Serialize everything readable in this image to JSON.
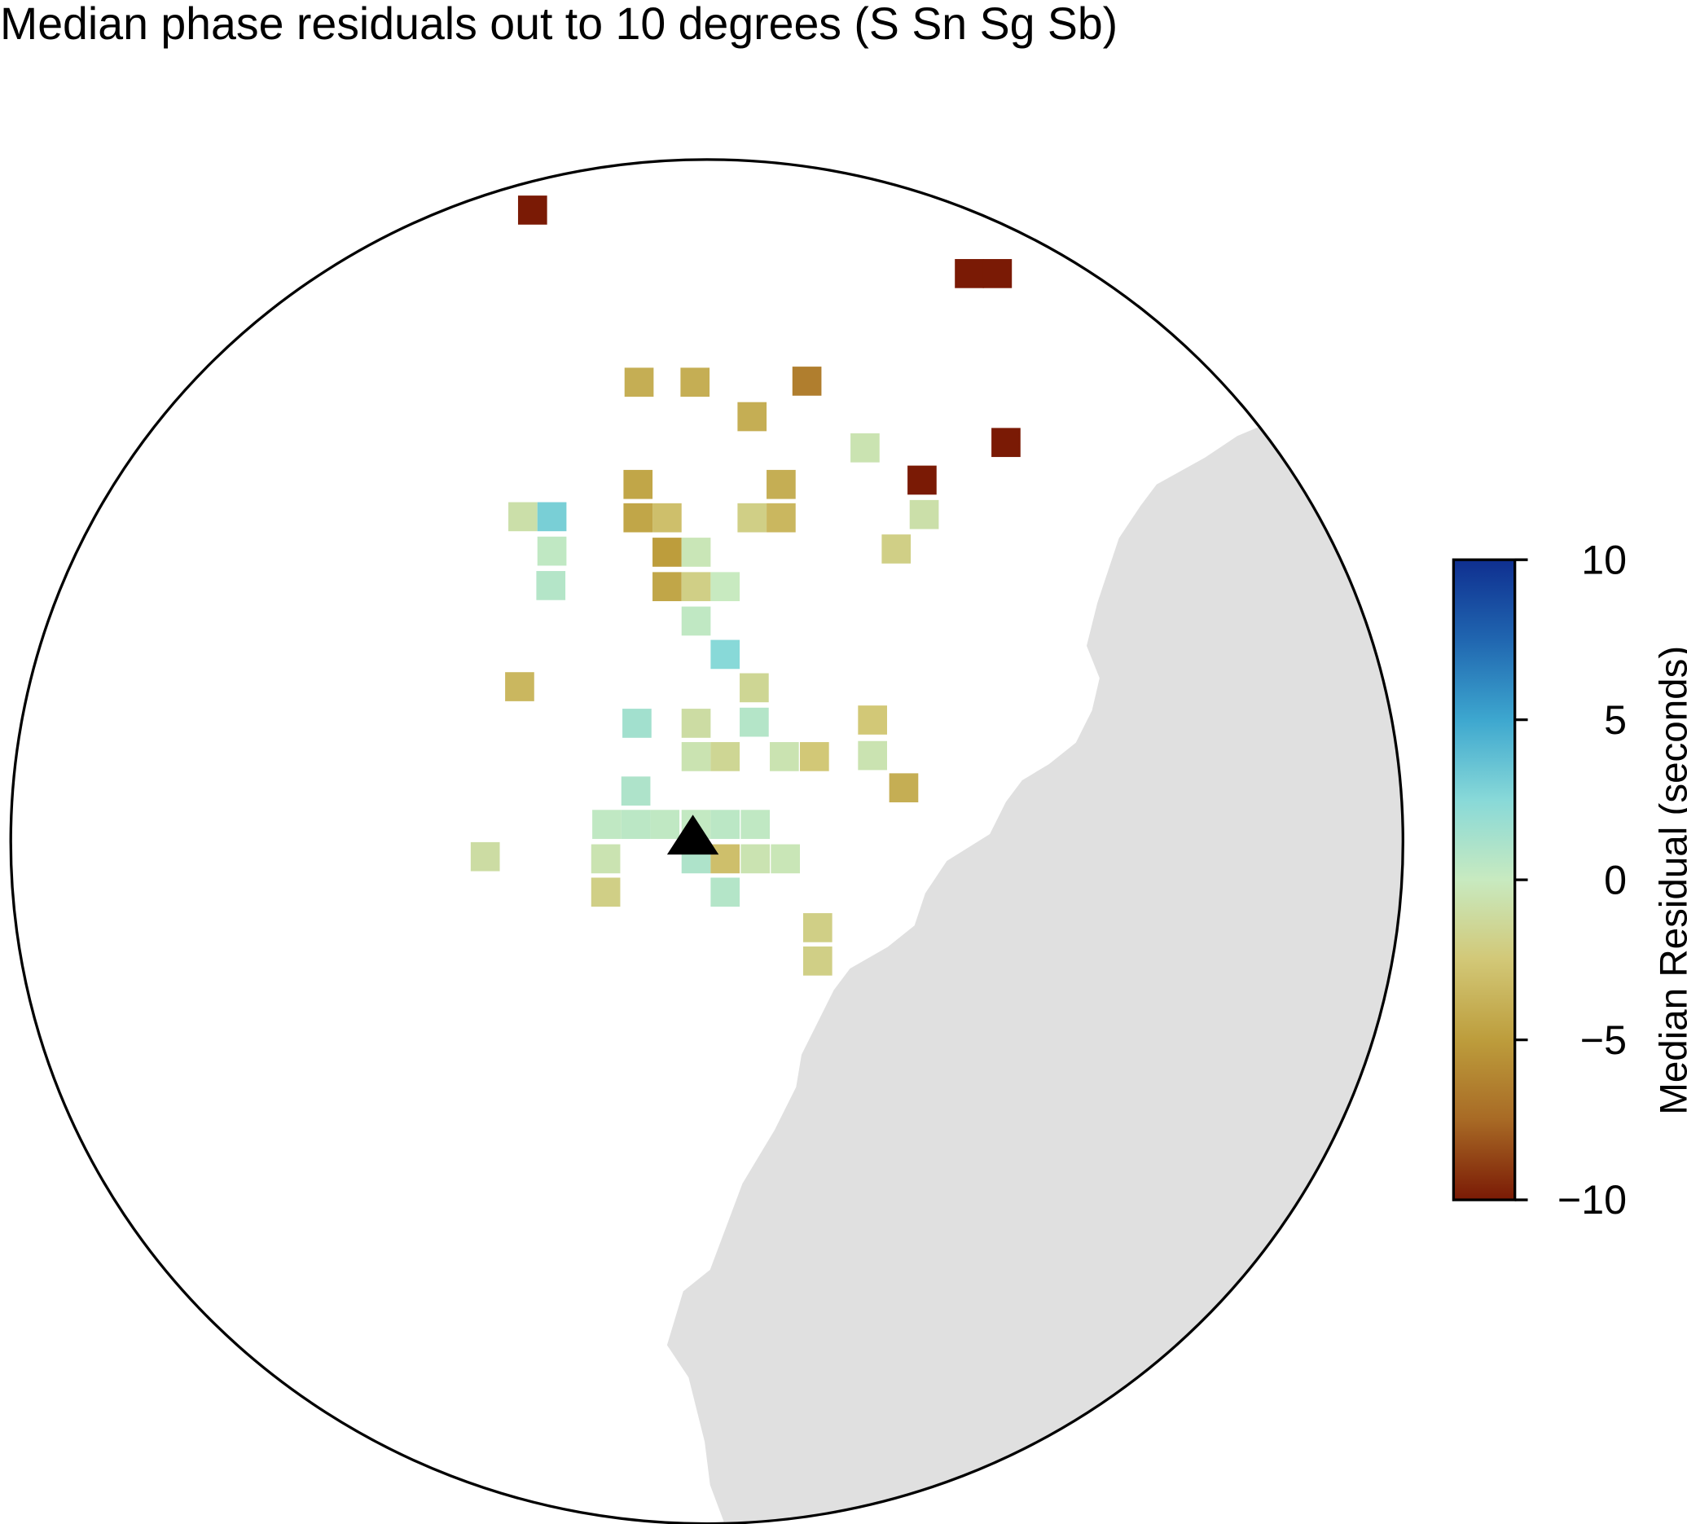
{
  "chart_data": {
    "type": "map",
    "title": "Median phase residuals out to 10 degrees (S Sn Sg Sb)",
    "colorbar_label": "Median Residual (seconds)",
    "clim": [
      -10,
      10
    ],
    "cticks": [
      {
        "value": -10,
        "label": "−10"
      },
      {
        "value": -5,
        "label": "−5"
      },
      0,
      5,
      10
    ],
    "colormap": [
      "#7a1a05",
      "#a86a25",
      "#bd9d3c",
      "#d2c877",
      "#c8eac0",
      "#88d9d8",
      "#3da7cf",
      "#2066b0",
      "#0f2f90"
    ],
    "values": [
      -10,
      -10,
      -10,
      -4,
      -4,
      -6.5,
      -4,
      -0.5,
      -10,
      -10,
      -4.5,
      -4,
      -0.8,
      3,
      -4.5,
      -3,
      -2,
      -3.5,
      -0.8,
      0.3,
      -5,
      -0.3,
      -2,
      0.8,
      -4.5,
      -2,
      0,
      0.3,
      2.5,
      -3.5,
      -1.5,
      1.5,
      -1,
      0.8,
      -2.5,
      -0.5,
      -1.5,
      -0.5,
      -2.5,
      -0.5,
      1,
      -4,
      0.3,
      0.5,
      0.3,
      0.2,
      0.5,
      0.3,
      -1,
      -0.5,
      1,
      -3,
      -0.5,
      -0.3,
      -2,
      0.8,
      -2,
      -2
    ]
  }
}
